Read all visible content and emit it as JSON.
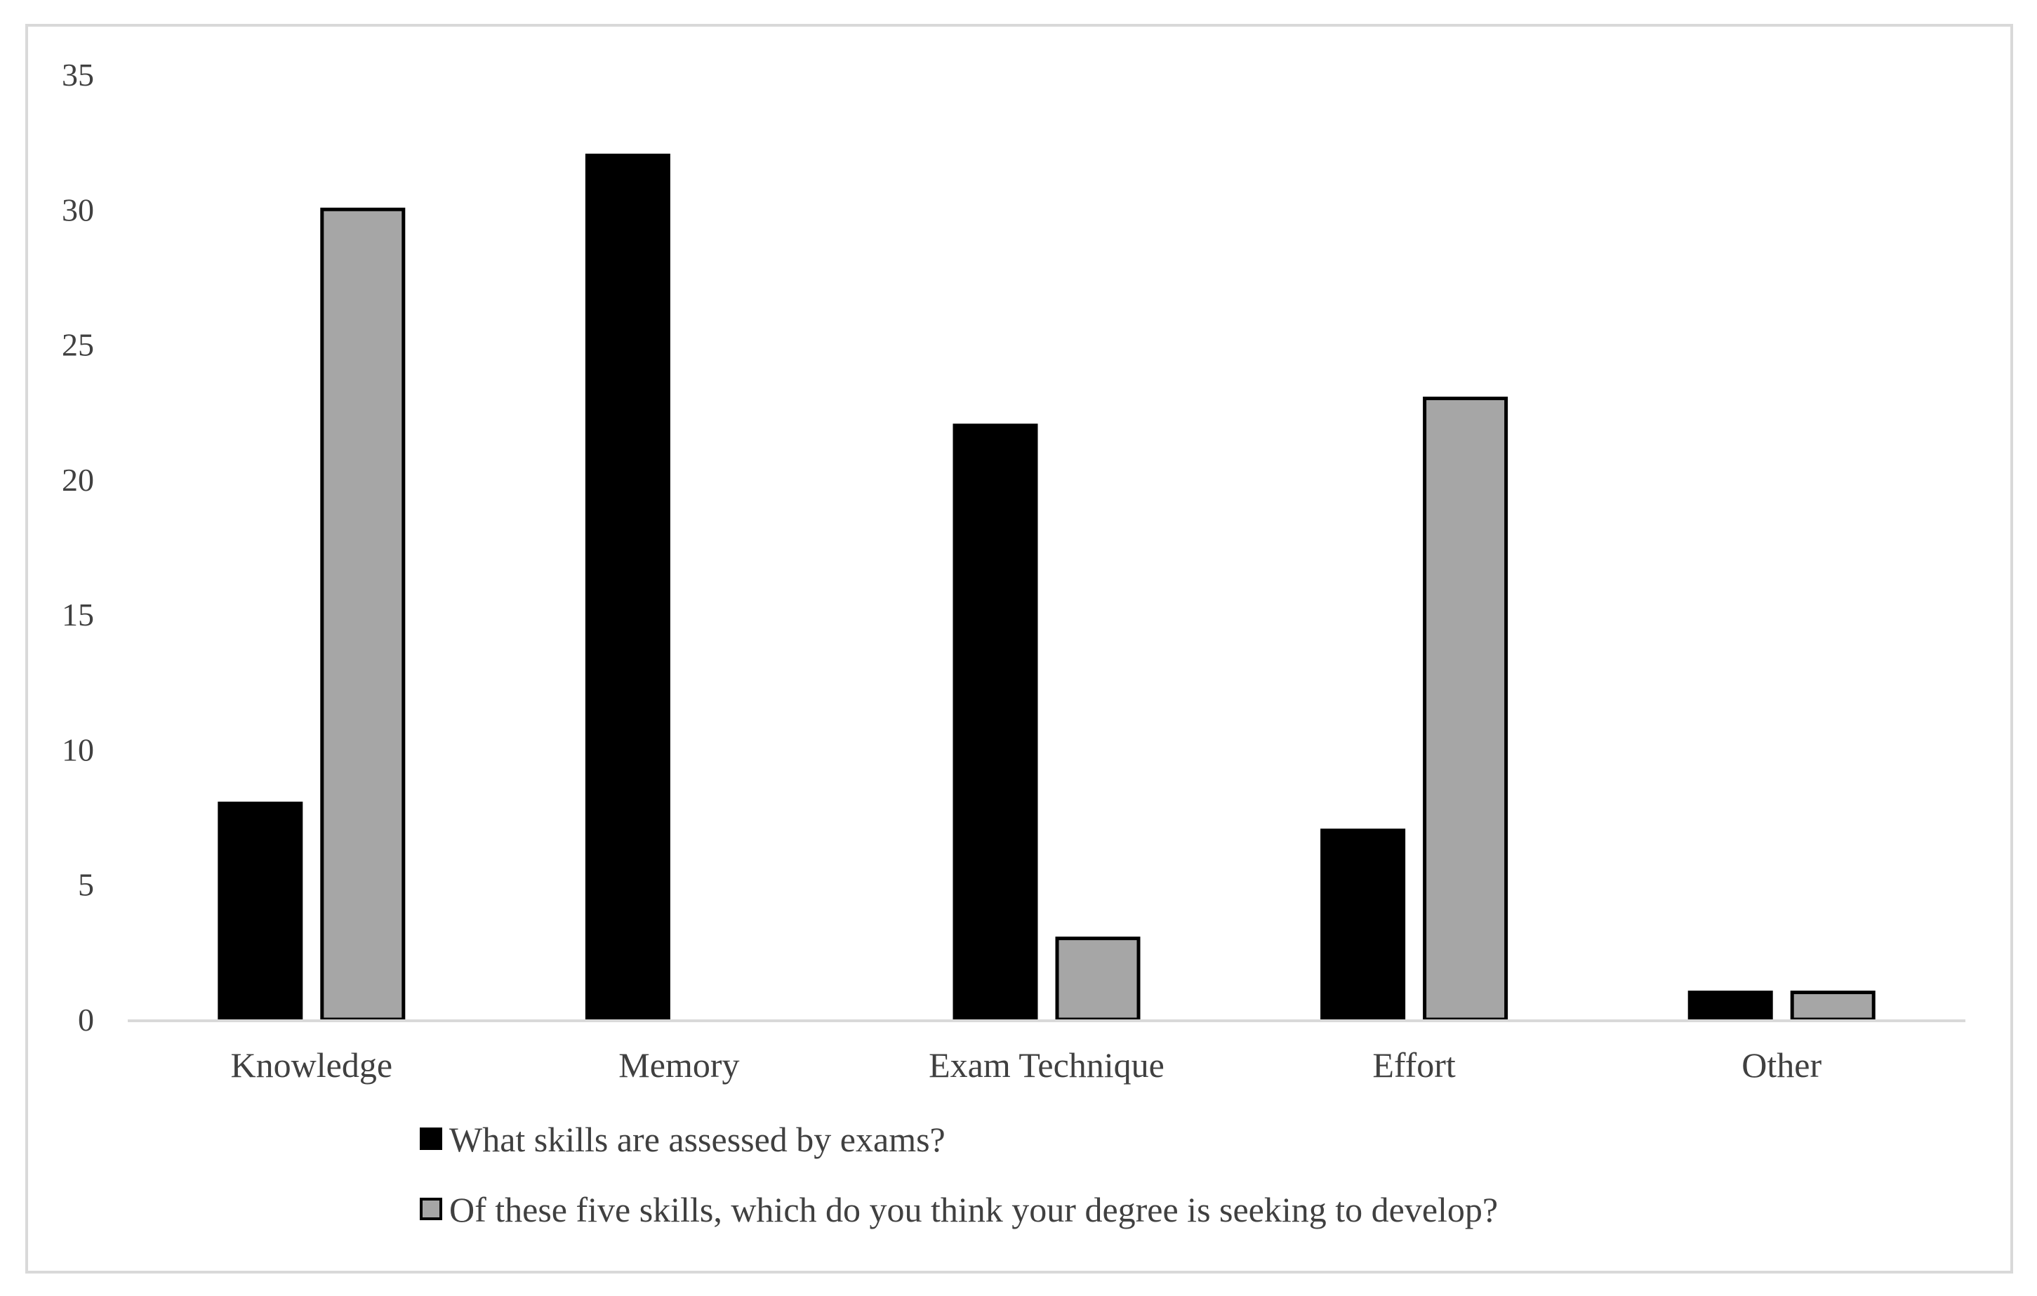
{
  "chart_data": {
    "type": "bar",
    "title": "",
    "xlabel": "",
    "ylabel": "",
    "categories": [
      "Knowledge",
      "Memory",
      "Exam Technique",
      "Effort",
      "Other"
    ],
    "series": [
      {
        "name": "What skills are assessed by exams?",
        "values": [
          8,
          32,
          22,
          7,
          1
        ],
        "color": "#000000"
      },
      {
        "name": "Of these five skills, which do you think your degree is seeking to develop?",
        "values": [
          30,
          0,
          3,
          23,
          1
        ],
        "color": "#a6a6a6"
      }
    ],
    "ylim": [
      0,
      35
    ],
    "yticks": [
      0,
      5,
      10,
      15,
      20,
      25,
      30,
      35
    ],
    "grid": false,
    "legend_position": "bottom",
    "bar_outline_color": "#000000",
    "axis_color": "#d9d9d9"
  }
}
